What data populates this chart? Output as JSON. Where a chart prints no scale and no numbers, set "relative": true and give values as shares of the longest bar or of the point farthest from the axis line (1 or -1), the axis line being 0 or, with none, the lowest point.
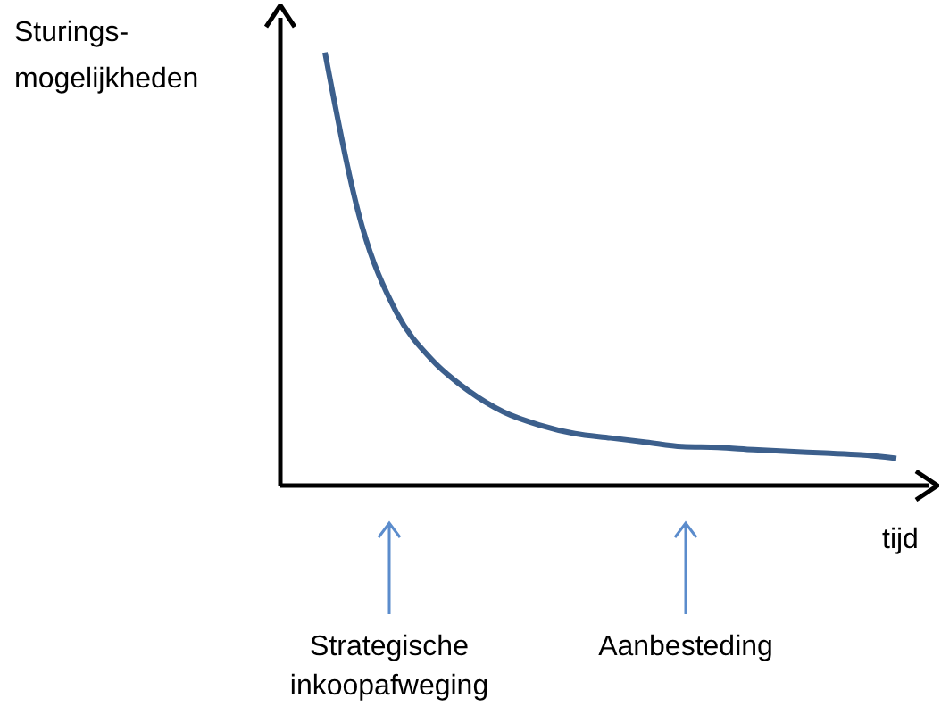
{
  "chart_data": {
    "type": "line",
    "relative": true,
    "xlabel": "tijd",
    "ylabel": "Sturings-mogelijkheden",
    "categories": [
      null,
      null,
      null,
      null,
      null,
      null,
      null,
      null,
      null,
      null,
      null,
      null,
      null,
      null,
      null,
      null,
      null
    ],
    "series": [
      {
        "color": "#3c5f8c",
        "values": [
          1.0,
          0.61,
          0.4,
          0.29,
          0.22,
          0.17,
          0.14,
          0.12,
          0.11,
          0.1,
          0.09,
          0.088,
          0.083,
          0.079,
          0.075,
          0.071,
          0.063
        ]
      }
    ],
    "annotations": [
      "Strategische inkoopafweging",
      "Aanbesteding"
    ],
    "grid": false,
    "legend": false,
    "marker": "none",
    "line_style": "solid"
  }
}
